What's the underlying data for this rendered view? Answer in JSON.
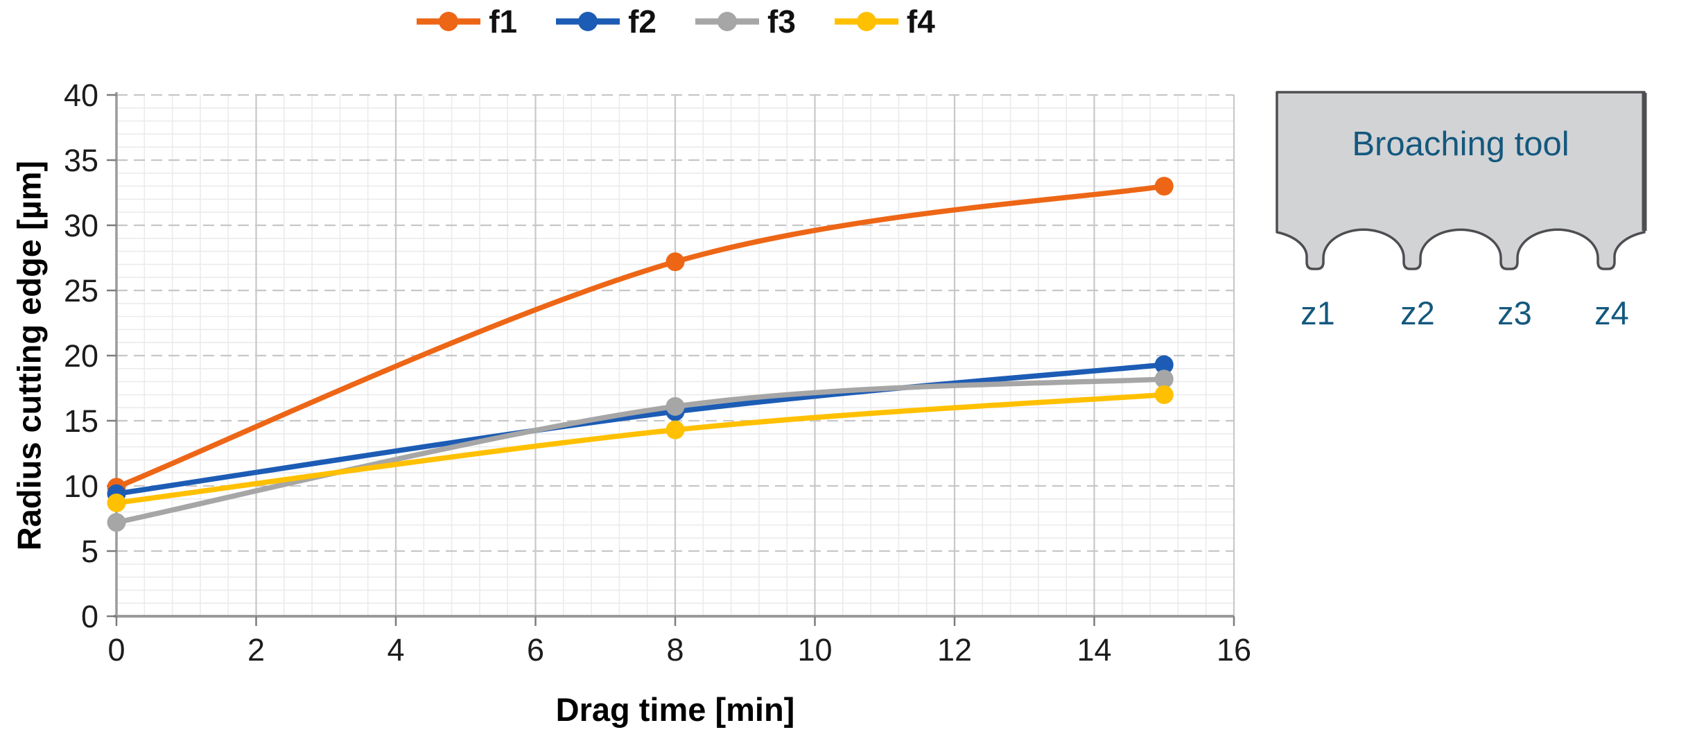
{
  "chart_data": {
    "type": "line",
    "title": "",
    "xlabel": "Drag time [min]",
    "ylabel": "Radius cutting edge [µm]",
    "xlim": [
      0,
      16
    ],
    "ylim": [
      0,
      40
    ],
    "x_major_ticks": [
      0,
      2,
      4,
      6,
      8,
      10,
      12,
      14,
      16
    ],
    "y_major_ticks": [
      0,
      5,
      10,
      15,
      20,
      25,
      30,
      35,
      40
    ],
    "x_minor_unit": 0.4,
    "y_minor_unit": 1,
    "grid": "major and minor gridlines on",
    "legend_position": "top",
    "smooth_lines": true,
    "x": [
      0,
      8,
      15
    ],
    "series": [
      {
        "name": "f1",
        "color": "#ed6616",
        "values": [
          9.9,
          27.2,
          33.0
        ]
      },
      {
        "name": "f2",
        "color": "#1c5cb5",
        "values": [
          9.4,
          15.7,
          19.3
        ]
      },
      {
        "name": "f3",
        "color": "#a6a6a6",
        "values": [
          7.2,
          16.1,
          18.2
        ]
      },
      {
        "name": "f4",
        "color": "#ffc000",
        "values": [
          8.7,
          14.3,
          17.0
        ]
      }
    ]
  },
  "style_colors": {
    "axis_line": "#9a9a9a",
    "tick_mark": "#7c7c7c",
    "tick_text": "#1c1c1c",
    "grid_major": "#c7c7c7",
    "grid_minor": "#ebebeb"
  },
  "tool_panel": {
    "title": "Broaching tool",
    "teeth_labels": [
      "z1",
      "z2",
      "z3",
      "z4"
    ],
    "text_color": "#14587e",
    "fill": "#d2d3d5",
    "border": "#4e4e52"
  }
}
